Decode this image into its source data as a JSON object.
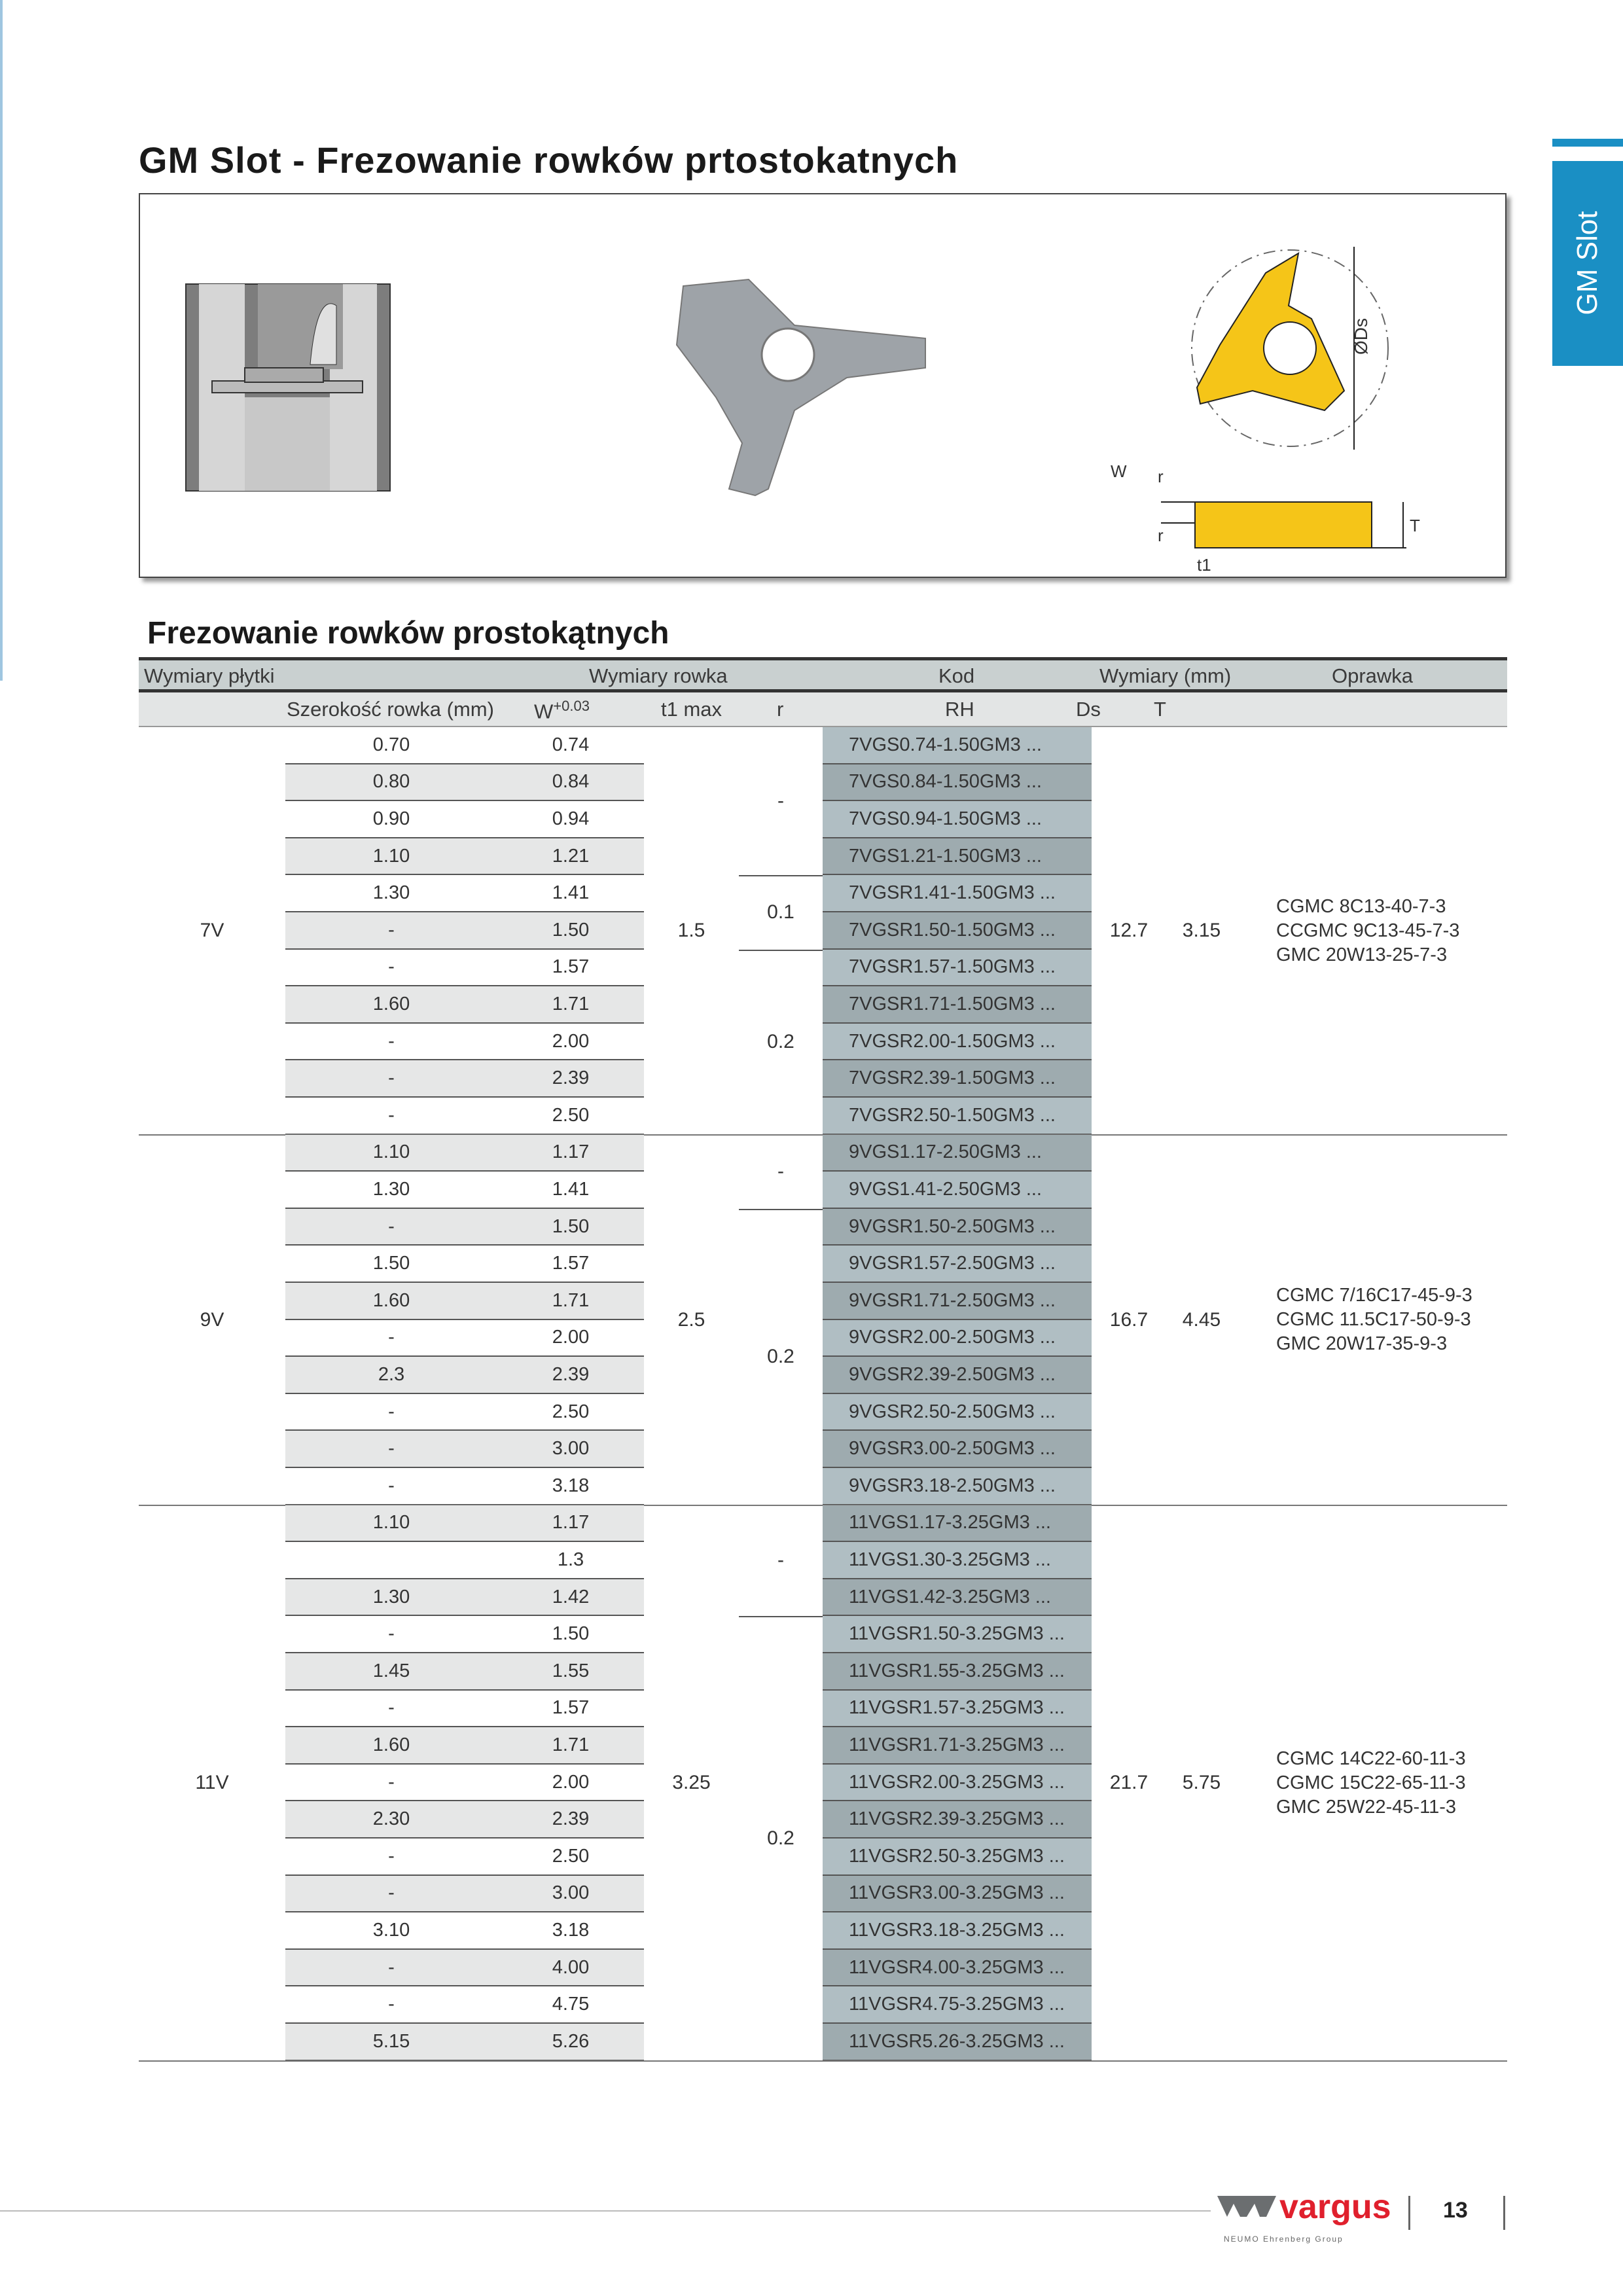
{
  "page": {
    "title": "GM Slot - Frezowanie rowków prtostokatnych",
    "side_tab": "GM Slot",
    "section_title": "Frezowanie rowków prostokątnych",
    "page_number": "13"
  },
  "figure": {
    "labels": {
      "ds": "ØDs",
      "w": "W",
      "r": "r",
      "t": "T",
      "t1": "t1"
    }
  },
  "logo": {
    "brand": "vargus",
    "tagline": "NEUMO Ehrenberg Group"
  },
  "colors": {
    "accent": "#1a8fc4",
    "kod_light": "#b0bec3",
    "kod_dark": "#9eabaf",
    "row_gray": "#e6e7e7",
    "insert": "#f5c518"
  },
  "table": {
    "header1": {
      "plate": "Wymiary płytki",
      "groove": "Wymiary rowka",
      "code": "Kod",
      "dims": "Wymiary (mm)",
      "holder": "Oprawka"
    },
    "header2": {
      "width": "Szerokość rowka (mm)",
      "w": "W",
      "w_tol": "+0.03",
      "t1": "t1 max",
      "r": "r",
      "rh": "RH",
      "ds": "Ds",
      "t": "T"
    },
    "groups": [
      {
        "size": "7V",
        "t1": "1.5",
        "ds": "12.7",
        "t": "3.15",
        "holders": [
          "CGMC 8C13-40-7-3",
          "CCGMC 9C13-45-7-3",
          "GMC 20W13-25-7-3"
        ],
        "r_groups": [
          {
            "value": "-",
            "rows": 4
          },
          {
            "value": "0.1",
            "rows": 2
          },
          {
            "value": "0.2",
            "rows": 5
          }
        ],
        "rows": [
          [
            "0.70",
            "0.74",
            "7VGS0.74-1.50GM3 ..."
          ],
          [
            "0.80",
            "0.84",
            "7VGS0.84-1.50GM3 ..."
          ],
          [
            "0.90",
            "0.94",
            "7VGS0.94-1.50GM3 ..."
          ],
          [
            "1.10",
            "1.21",
            "7VGS1.21-1.50GM3 ..."
          ],
          [
            "1.30",
            "1.41",
            "7VGSR1.41-1.50GM3 ..."
          ],
          [
            "-",
            "1.50",
            "7VGSR1.50-1.50GM3 ..."
          ],
          [
            "-",
            "1.57",
            "7VGSR1.57-1.50GM3 ..."
          ],
          [
            "1.60",
            "1.71",
            "7VGSR1.71-1.50GM3 ..."
          ],
          [
            "-",
            "2.00",
            "7VGSR2.00-1.50GM3 ..."
          ],
          [
            "-",
            "2.39",
            "7VGSR2.39-1.50GM3 ..."
          ],
          [
            "-",
            "2.50",
            "7VGSR2.50-1.50GM3 ..."
          ]
        ]
      },
      {
        "size": "9V",
        "t1": "2.5",
        "ds": "16.7",
        "t": "4.45",
        "holders": [
          "CGMC 7/16C17-45-9-3",
          "CGMC 11.5C17-50-9-3",
          "GMC 20W17-35-9-3"
        ],
        "r_groups": [
          {
            "value": "-",
            "rows": 2
          },
          {
            "value": "0.2",
            "rows": 8
          }
        ],
        "rows": [
          [
            "1.10",
            "1.17",
            "9VGS1.17-2.50GM3 ..."
          ],
          [
            "1.30",
            "1.41",
            "9VGS1.41-2.50GM3 ..."
          ],
          [
            "-",
            "1.50",
            "9VGSR1.50-2.50GM3 ..."
          ],
          [
            "1.50",
            "1.57",
            "9VGSR1.57-2.50GM3 ..."
          ],
          [
            "1.60",
            "1.71",
            "9VGSR1.71-2.50GM3 ..."
          ],
          [
            "-",
            "2.00",
            "9VGSR2.00-2.50GM3 ..."
          ],
          [
            "2.3",
            "2.39",
            "9VGSR2.39-2.50GM3 ..."
          ],
          [
            "-",
            "2.50",
            "9VGSR2.50-2.50GM3 ..."
          ],
          [
            "-",
            "3.00",
            "9VGSR3.00-2.50GM3 ..."
          ],
          [
            "-",
            "3.18",
            "9VGSR3.18-2.50GM3 ..."
          ]
        ]
      },
      {
        "size": "11V",
        "t1": "3.25",
        "ds": "21.7",
        "t": "5.75",
        "holders": [
          "CGMC 14C22-60-11-3",
          "CGMC 15C22-65-11-3",
          "GMC 25W22-45-11-3"
        ],
        "r_groups": [
          {
            "value": "-",
            "rows": 3
          },
          {
            "value": "0.2",
            "rows": 12
          }
        ],
        "rows": [
          [
            "1.10",
            "1.17",
            "11VGS1.17-3.25GM3 ..."
          ],
          [
            "",
            "1.3",
            "11VGS1.30-3.25GM3 ..."
          ],
          [
            "1.30",
            "1.42",
            "11VGS1.42-3.25GM3 ..."
          ],
          [
            "-",
            "1.50",
            "11VGSR1.50-3.25GM3 ..."
          ],
          [
            "1.45",
            "1.55",
            "11VGSR1.55-3.25GM3 ..."
          ],
          [
            "-",
            "1.57",
            "11VGSR1.57-3.25GM3 ..."
          ],
          [
            "1.60",
            "1.71",
            "11VGSR1.71-3.25GM3 ..."
          ],
          [
            "-",
            "2.00",
            "11VGSR2.00-3.25GM3 ..."
          ],
          [
            "2.30",
            "2.39",
            "11VGSR2.39-3.25GM3 ..."
          ],
          [
            "-",
            "2.50",
            "11VGSR2.50-3.25GM3 ..."
          ],
          [
            "-",
            "3.00",
            "11VGSR3.00-3.25GM3 ..."
          ],
          [
            "3.10",
            "3.18",
            "11VGSR3.18-3.25GM3 ..."
          ],
          [
            "-",
            "4.00",
            "11VGSR4.00-3.25GM3 ..."
          ],
          [
            "-",
            "4.75",
            "11VGSR4.75-3.25GM3 ..."
          ],
          [
            "5.15",
            "5.26",
            "11VGSR5.26-3.25GM3 ..."
          ]
        ]
      }
    ]
  }
}
